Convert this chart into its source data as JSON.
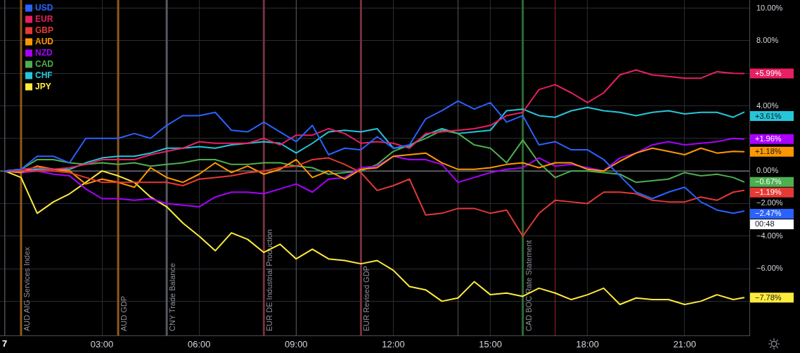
{
  "chart_data": {
    "type": "line",
    "x": [
      0,
      0.5,
      1,
      1.5,
      2,
      2.5,
      3,
      3.5,
      4,
      4.5,
      5,
      5.5,
      6,
      6.5,
      7,
      7.5,
      8,
      8.5,
      9,
      9.5,
      10,
      10.5,
      11,
      11.5,
      12,
      12.5,
      13,
      13.5,
      14,
      14.5,
      15,
      15.5,
      16,
      16.5,
      17,
      17.5,
      18,
      18.5,
      19,
      19.5,
      20,
      20.5,
      21,
      21.5,
      22,
      22.5,
      22.83
    ],
    "xlim": [
      -0.15,
      23
    ],
    "xticks": [
      {
        "value": 0,
        "label": null
      },
      {
        "value": 3,
        "label": "03:00"
      },
      {
        "value": 6,
        "label": "06:00"
      },
      {
        "value": 9,
        "label": "09:00"
      },
      {
        "value": 12,
        "label": "12:00"
      },
      {
        "value": 15,
        "label": "15:00"
      },
      {
        "value": 18,
        "label": "18:00"
      },
      {
        "value": 21,
        "label": "21:00"
      }
    ],
    "ylim": [
      -10.1,
      10.5
    ],
    "yticks": [
      {
        "value": 10,
        "label": "10.00%"
      },
      {
        "value": 8,
        "label": "8.00%"
      },
      {
        "value": 6,
        "label": null
      },
      {
        "value": 4,
        "label": "4.00%"
      },
      {
        "value": 2,
        "label": null
      },
      {
        "value": 0,
        "label": "0.00%"
      },
      {
        "value": -2,
        "label": "−2.00%"
      },
      {
        "value": -4,
        "label": "−4.00%"
      },
      {
        "value": -6,
        "label": "−6.00%"
      },
      {
        "value": -8,
        "label": null
      }
    ],
    "grid": true,
    "legend": "top left",
    "marker": "none",
    "line_style": "solid",
    "series": [
      {
        "name": "USD",
        "color": "#2962ff",
        "values": [
          0,
          0.1,
          0.9,
          0.9,
          0.5,
          2.0,
          2.0,
          2.0,
          2.3,
          2.0,
          2.8,
          3.4,
          3.4,
          3.6,
          2.5,
          2.4,
          3.0,
          2.4,
          1.8,
          2.8,
          1.0,
          1.4,
          1.3,
          2.1,
          1.4,
          1.6,
          3.2,
          3.7,
          4.3,
          3.8,
          4.2,
          3.0,
          3.4,
          1.6,
          1.8,
          1.3,
          1.3,
          0.7,
          -0.3,
          -1.3,
          -1.7,
          -1.3,
          -1.0,
          -1.9,
          -2.4,
          -2.6,
          -2.47
        ],
        "value_labels": [
          null,
          null,
          null,
          null,
          null,
          null,
          null,
          null,
          null,
          null,
          null,
          null,
          null,
          null,
          null,
          null,
          null,
          null,
          null,
          null,
          null,
          null,
          null,
          null,
          null,
          null,
          null,
          null,
          null,
          null,
          null,
          null,
          null,
          null,
          null,
          null,
          null,
          null,
          null,
          null,
          null,
          null,
          null,
          null,
          null,
          null,
          "−2.47%"
        ]
      },
      {
        "name": "EUR",
        "color": "#e91e63",
        "values": [
          0,
          0.1,
          0.2,
          0.1,
          0.2,
          0.4,
          0.7,
          0.7,
          0.7,
          1.0,
          1.2,
          1.4,
          1.8,
          1.7,
          1.7,
          1.7,
          2.0,
          1.6,
          2.2,
          2.2,
          2.6,
          2.3,
          1.7,
          1.8,
          1.7,
          1.4,
          2.3,
          2.4,
          2.5,
          2.6,
          2.8,
          3.4,
          3.6,
          5.0,
          5.3,
          4.8,
          4.2,
          4.8,
          5.9,
          6.2,
          5.9,
          5.8,
          5.7,
          5.7,
          6.1,
          6.0,
          5.99
        ],
        "value_labels": [
          null,
          null,
          null,
          null,
          null,
          null,
          null,
          null,
          null,
          null,
          null,
          null,
          null,
          null,
          null,
          null,
          null,
          null,
          null,
          null,
          null,
          null,
          null,
          null,
          null,
          null,
          null,
          null,
          null,
          null,
          null,
          null,
          null,
          null,
          null,
          null,
          null,
          null,
          null,
          null,
          null,
          null,
          null,
          null,
          null,
          null,
          "+5.99%"
        ]
      },
      {
        "name": "GBP",
        "color": "#e53935",
        "values": [
          0,
          0,
          0,
          0,
          -0.1,
          -0.4,
          -0.7,
          -0.7,
          -0.7,
          -0.7,
          -0.7,
          -0.9,
          -0.5,
          -0.4,
          -0.3,
          -0.1,
          0,
          0.2,
          0.3,
          0.7,
          0.8,
          0.4,
          -0.1,
          -1.2,
          -0.9,
          -0.5,
          -2.7,
          -2.6,
          -2.3,
          -2.3,
          -2.6,
          -2.4,
          -4.0,
          -2.6,
          -1.8,
          -1.9,
          -2.0,
          -1.3,
          -1.3,
          -1.4,
          -1.8,
          -1.9,
          -1.9,
          -1.6,
          -1.8,
          -1.3,
          -1.19
        ],
        "value_labels": [
          null,
          null,
          null,
          null,
          null,
          null,
          null,
          null,
          null,
          null,
          null,
          null,
          null,
          null,
          null,
          null,
          null,
          null,
          null,
          null,
          null,
          null,
          null,
          null,
          null,
          null,
          null,
          null,
          null,
          null,
          null,
          null,
          null,
          null,
          null,
          null,
          null,
          null,
          null,
          null,
          null,
          null,
          null,
          null,
          null,
          null,
          "−1.19%"
        ]
      },
      {
        "name": "AUD",
        "color": "#ff9800",
        "values": [
          0,
          -0.1,
          0.3,
          0.1,
          0,
          -0.8,
          -0.5,
          -0.7,
          -1.0,
          0.2,
          -0.4,
          -0.7,
          -0.2,
          0.5,
          -0.1,
          0.3,
          -0.2,
          0.1,
          0.7,
          -0.4,
          0,
          -0.5,
          0.1,
          0.2,
          0.9,
          1.0,
          1.1,
          0.5,
          0.1,
          0.1,
          0.2,
          0.4,
          0.5,
          0.2,
          0.5,
          0.5,
          0.1,
          0,
          0.6,
          1.1,
          1.4,
          1.2,
          1.0,
          1.4,
          1.1,
          1.2,
          1.18
        ],
        "value_labels": [
          null,
          null,
          null,
          null,
          null,
          null,
          null,
          null,
          null,
          null,
          null,
          null,
          null,
          null,
          null,
          null,
          null,
          null,
          null,
          null,
          null,
          null,
          null,
          null,
          null,
          null,
          null,
          null,
          null,
          null,
          null,
          null,
          null,
          null,
          null,
          null,
          null,
          null,
          null,
          null,
          null,
          null,
          null,
          null,
          null,
          null,
          "+1.18%"
        ]
      },
      {
        "name": "NZD",
        "color": "#aa00ff",
        "values": [
          0,
          -0.1,
          0,
          -0.2,
          -0.3,
          -1.1,
          -1.7,
          -1.7,
          -1.8,
          -1.7,
          -2.0,
          -2.1,
          -2.2,
          -1.6,
          -1.3,
          -1.3,
          -1.4,
          -1.1,
          -0.8,
          -1.3,
          -0.5,
          -0.4,
          0.2,
          0.3,
          0.9,
          0.7,
          0.7,
          0.4,
          -0.7,
          -0.4,
          -0.1,
          0.1,
          0.2,
          0.8,
          0.3,
          0.4,
          0.2,
          0,
          0.8,
          1.1,
          1.6,
          1.8,
          1.6,
          1.7,
          1.8,
          2.0,
          1.96
        ],
        "value_labels": [
          null,
          null,
          null,
          null,
          null,
          null,
          null,
          null,
          null,
          null,
          null,
          null,
          null,
          null,
          null,
          null,
          null,
          null,
          null,
          null,
          null,
          null,
          null,
          null,
          null,
          null,
          null,
          null,
          null,
          null,
          null,
          null,
          null,
          null,
          null,
          null,
          null,
          null,
          null,
          null,
          null,
          null,
          null,
          null,
          null,
          null,
          "+1.96%"
        ]
      },
      {
        "name": "CAD",
        "color": "#4caf50",
        "values": [
          0,
          0.1,
          0.7,
          0.7,
          0.5,
          0.4,
          0.5,
          0.4,
          0.5,
          0.3,
          0.4,
          0.5,
          0.7,
          0.7,
          0.4,
          0.4,
          0.5,
          0.5,
          0.3,
          0.2,
          -0.2,
          -0.1,
          0,
          0.4,
          1.2,
          1.6,
          2.0,
          2.5,
          2.3,
          1.6,
          1.4,
          0.5,
          1.9,
          0.5,
          -0.4,
          0,
          0,
          -0.1,
          -0.2,
          -0.7,
          -0.6,
          -0.5,
          -0.1,
          -0.3,
          -0.2,
          -0.4,
          -0.67
        ],
        "value_labels": [
          null,
          null,
          null,
          null,
          null,
          null,
          null,
          null,
          null,
          null,
          null,
          null,
          null,
          null,
          null,
          null,
          null,
          null,
          null,
          null,
          null,
          null,
          null,
          null,
          null,
          null,
          null,
          null,
          null,
          null,
          null,
          null,
          null,
          null,
          null,
          null,
          null,
          null,
          null,
          null,
          null,
          null,
          null,
          null,
          null,
          null,
          "−0.67%"
        ]
      },
      {
        "name": "CHF",
        "color": "#26c6da",
        "values": [
          0,
          0,
          0.1,
          0.1,
          0.1,
          0.5,
          0.8,
          0.9,
          0.9,
          1.1,
          1.4,
          1.4,
          1.5,
          1.4,
          1.6,
          1.7,
          1.8,
          1.7,
          1.1,
          1.7,
          2.4,
          2.5,
          2.4,
          2.6,
          1.4,
          1.5,
          2.2,
          2.6,
          2.3,
          2.4,
          2.5,
          3.7,
          3.8,
          3.4,
          3.3,
          3.7,
          3.9,
          3.7,
          3.6,
          3.4,
          3.6,
          3.7,
          3.5,
          3.6,
          3.6,
          3.3,
          3.61
        ],
        "value_labels": [
          null,
          null,
          null,
          null,
          null,
          null,
          null,
          null,
          null,
          null,
          null,
          null,
          null,
          null,
          null,
          null,
          null,
          null,
          null,
          null,
          null,
          null,
          null,
          null,
          null,
          null,
          null,
          null,
          null,
          null,
          null,
          null,
          null,
          null,
          null,
          null,
          null,
          null,
          null,
          null,
          null,
          null,
          null,
          null,
          null,
          null,
          "+3.61%"
        ]
      },
      {
        "name": "JPY",
        "color": "#ffeb3b",
        "values": [
          0,
          -0.4,
          -2.6,
          -1.9,
          -1.4,
          -0.7,
          0,
          -0.3,
          -0.7,
          -1.6,
          -2.2,
          -3.2,
          -4.0,
          -4.9,
          -3.8,
          -4.2,
          -5.0,
          -4.5,
          -5.4,
          -4.8,
          -5.4,
          -5.5,
          -5.7,
          -5.5,
          -6.1,
          -7.1,
          -7.3,
          -8.0,
          -7.8,
          -6.8,
          -7.6,
          -7.5,
          -7.7,
          -7.2,
          -7.5,
          -7.9,
          -7.6,
          -7.2,
          -8.2,
          -7.8,
          -7.9,
          -7.9,
          -8.2,
          -8.0,
          -7.6,
          -7.9,
          -7.78
        ],
        "value_labels": [
          null,
          null,
          null,
          null,
          null,
          null,
          null,
          null,
          null,
          null,
          null,
          null,
          null,
          null,
          null,
          null,
          null,
          null,
          null,
          null,
          null,
          null,
          null,
          null,
          null,
          null,
          null,
          null,
          null,
          null,
          null,
          null,
          null,
          null,
          null,
          null,
          null,
          null,
          null,
          null,
          null,
          null,
          null,
          null,
          null,
          null,
          "−7.78%"
        ]
      }
    ],
    "ref_lines": [
      {
        "axis": "y",
        "value": 0,
        "color": "#9598a1"
      },
      {
        "axis": "x",
        "value": 0,
        "color": "#5d606b"
      },
      {
        "axis": "x",
        "value": 0.5,
        "label": "AUD AIG Services Index",
        "color": "#8f5a1c"
      },
      {
        "axis": "x",
        "value": 3.5,
        "label": "AUD GDP",
        "color": "#8f5a1c"
      },
      {
        "axis": "x",
        "value": 5,
        "label": "CNY Trade Balance",
        "color": "#55585f"
      },
      {
        "axis": "x",
        "value": 8,
        "label": "EUR DE Industrial Production",
        "color": "#73303f"
      },
      {
        "axis": "x",
        "value": 9,
        "color": "#55585f"
      },
      {
        "axis": "x",
        "value": 11,
        "label": "EUR Revised GDP",
        "color": "#73303f"
      },
      {
        "axis": "x",
        "value": 14,
        "color": "#55585f"
      },
      {
        "axis": "x",
        "value": 16,
        "label": "CAD BOC Rate Statement",
        "color": "#2f6b30"
      },
      {
        "axis": "x",
        "value": 17,
        "color": "#a3262f"
      }
    ],
    "annotations": [
      "7",
      {
        "text": "00:48",
        "x": 22.83,
        "y": -2.47
      }
    ]
  }
}
